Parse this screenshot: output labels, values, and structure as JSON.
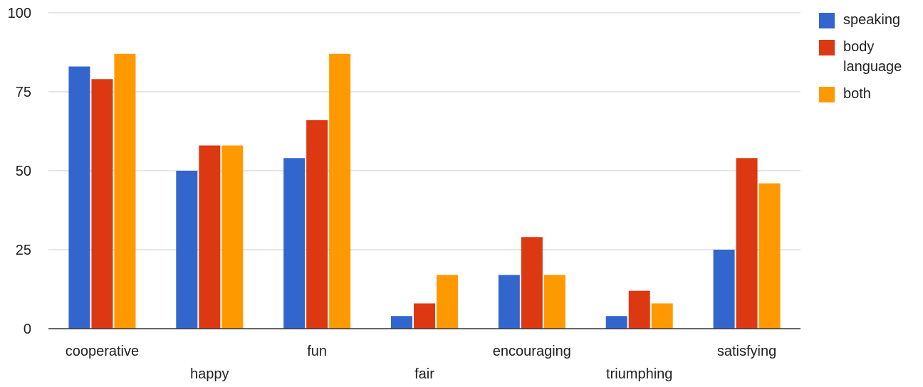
{
  "chart_data": {
    "type": "bar",
    "categories": [
      "cooperative",
      "happy",
      "fun",
      "fair",
      "encouraging",
      "triumphing",
      "satisfying"
    ],
    "series": [
      {
        "name": "speaking",
        "color": "#3366cc",
        "values": [
          83,
          50,
          54,
          4,
          17,
          4,
          25
        ]
      },
      {
        "name": "body language",
        "color": "#dc3912",
        "values": [
          79,
          58,
          66,
          8,
          29,
          12,
          54
        ]
      },
      {
        "name": "both",
        "color": "#ff9900",
        "values": [
          87,
          58,
          87,
          17,
          17,
          8,
          46
        ]
      }
    ],
    "title": "",
    "xlabel": "",
    "ylabel": "",
    "ylim": [
      0,
      100
    ],
    "yticks": [
      "0",
      "25",
      "50",
      "75",
      "100"
    ],
    "grid": true,
    "legend_position": "right"
  }
}
